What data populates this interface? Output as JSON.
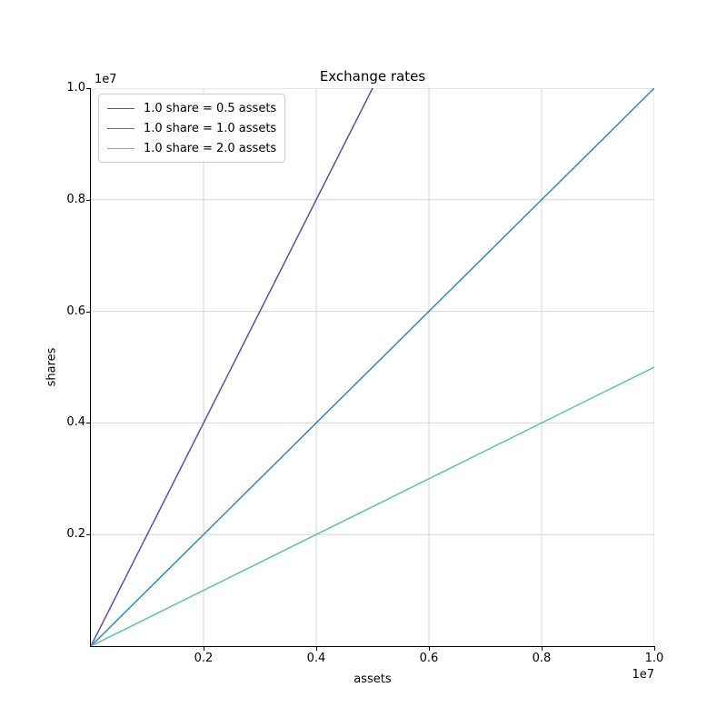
{
  "figure": {
    "background": "#ffffff"
  },
  "chart_data": {
    "type": "line",
    "title": "Exchange rates",
    "xlabel": "assets",
    "ylabel": "shares",
    "x_offset_text": "1e7",
    "y_offset_text": "1e7",
    "xlim": [
      0,
      10000000
    ],
    "ylim": [
      0,
      10000000
    ],
    "xticks": [
      2000000,
      4000000,
      6000000,
      8000000,
      10000000
    ],
    "xtick_labels": [
      "0.2",
      "0.4",
      "0.6",
      "0.8",
      "1.0"
    ],
    "yticks": [
      2000000,
      4000000,
      6000000,
      8000000,
      10000000
    ],
    "ytick_labels": [
      "0.2",
      "0.4",
      "0.6",
      "0.8",
      "1.0"
    ],
    "grid": true,
    "grid_color": "#d4d4d4",
    "axis_color": "#000000",
    "legend_position": "upper left",
    "series": [
      {
        "label": "1.0 share = 0.5 assets",
        "color": "#5e4fa2",
        "x": [
          0,
          10000000
        ],
        "y": [
          0,
          20000000
        ]
      },
      {
        "label": "1.0 share = 1.0 assets",
        "color": "#3288bd",
        "x": [
          0,
          10000000
        ],
        "y": [
          0,
          10000000
        ]
      },
      {
        "label": "1.0 share = 2.0 assets",
        "color": "#66c2a5",
        "x": [
          0,
          10000000
        ],
        "y": [
          0,
          5000000
        ]
      }
    ]
  }
}
